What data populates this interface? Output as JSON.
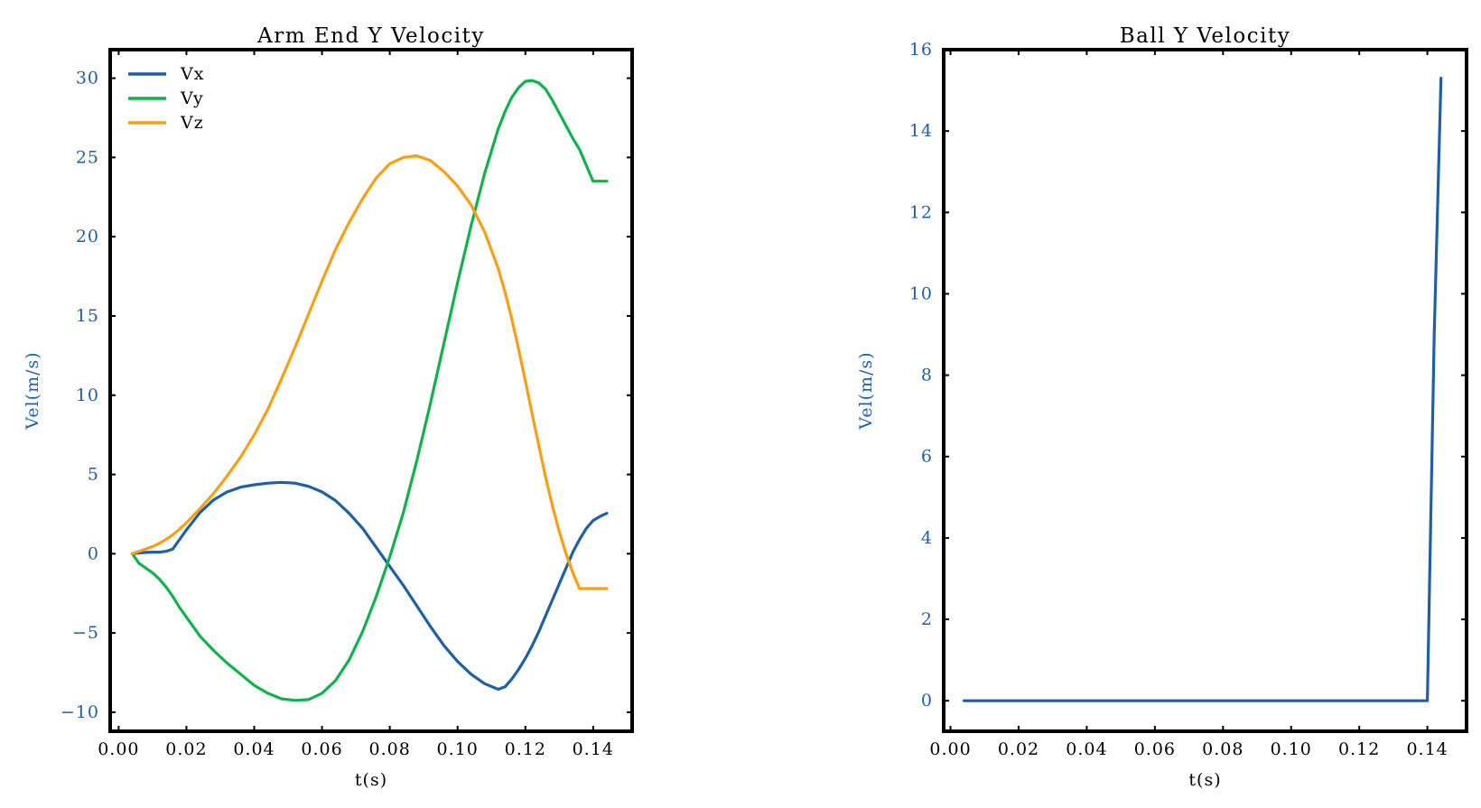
{
  "chart_data": [
    {
      "type": "line",
      "title": "Arm End Y Velocity",
      "xlabel": "t(s)",
      "ylabel": "Vel(m/s)",
      "xlim": [
        -0.0025,
        0.1515
      ],
      "ylim": [
        -11.2,
        31.8
      ],
      "xticks": [
        0.0,
        0.02,
        0.04,
        0.06,
        0.08,
        0.1,
        0.12,
        0.14
      ],
      "xtick_labels": [
        "0.00",
        "0.02",
        "0.04",
        "0.06",
        "0.08",
        "0.10",
        "0.12",
        "0.14"
      ],
      "yticks": [
        -10,
        -5,
        0,
        5,
        10,
        15,
        20,
        25,
        30
      ],
      "ytick_labels": [
        "−10",
        "−5",
        "0",
        "5",
        "10",
        "15",
        "20",
        "25",
        "30"
      ],
      "legend": {
        "location": "upper-left"
      },
      "x": [
        0.004,
        0.006,
        0.008,
        0.01,
        0.012,
        0.014,
        0.016,
        0.018,
        0.02,
        0.024,
        0.028,
        0.032,
        0.036,
        0.04,
        0.044,
        0.048,
        0.052,
        0.056,
        0.06,
        0.064,
        0.068,
        0.072,
        0.076,
        0.08,
        0.084,
        0.088,
        0.092,
        0.096,
        0.1,
        0.104,
        0.108,
        0.112,
        0.114,
        0.116,
        0.118,
        0.12,
        0.122,
        0.124,
        0.126,
        0.128,
        0.13,
        0.132,
        0.134,
        0.136,
        0.138,
        0.14,
        0.142,
        0.144
      ],
      "series": [
        {
          "name": "Vx",
          "color": "#1f5fa6",
          "values": [
            0.0,
            0.05,
            0.08,
            0.1,
            0.1,
            0.15,
            0.3,
            0.9,
            1.5,
            2.6,
            3.4,
            3.9,
            4.2,
            4.35,
            4.45,
            4.5,
            4.45,
            4.25,
            3.9,
            3.35,
            2.55,
            1.6,
            0.4,
            -0.8,
            -2.0,
            -3.3,
            -4.6,
            -5.8,
            -6.8,
            -7.6,
            -8.2,
            -8.55,
            -8.4,
            -7.9,
            -7.3,
            -6.6,
            -5.8,
            -4.9,
            -3.9,
            -2.9,
            -1.9,
            -0.9,
            0.1,
            0.9,
            1.6,
            2.1,
            2.35,
            2.55
          ]
        },
        {
          "name": "Vy",
          "color": "#11b24b",
          "values": [
            0.0,
            -0.6,
            -0.9,
            -1.2,
            -1.6,
            -2.1,
            -2.7,
            -3.4,
            -4.0,
            -5.2,
            -6.1,
            -6.9,
            -7.6,
            -8.3,
            -8.8,
            -9.15,
            -9.25,
            -9.2,
            -8.8,
            -8.0,
            -6.7,
            -4.9,
            -2.7,
            -0.2,
            2.6,
            5.9,
            9.5,
            13.3,
            17.1,
            20.7,
            24.0,
            26.8,
            27.9,
            28.8,
            29.4,
            29.8,
            29.85,
            29.7,
            29.3,
            28.6,
            27.8,
            27.0,
            26.2,
            25.5,
            24.5,
            23.5,
            23.5,
            23.5
          ]
        },
        {
          "name": "Vz",
          "color": "#f99f15",
          "values": [
            0.0,
            0.15,
            0.3,
            0.45,
            0.65,
            0.9,
            1.2,
            1.55,
            1.95,
            2.85,
            3.8,
            4.9,
            6.1,
            7.5,
            9.1,
            11.0,
            13.0,
            15.1,
            17.2,
            19.2,
            20.9,
            22.4,
            23.7,
            24.6,
            25.0,
            25.1,
            24.8,
            24.1,
            23.2,
            22.0,
            20.3,
            18.0,
            16.5,
            14.8,
            12.9,
            10.9,
            8.8,
            6.8,
            4.8,
            3.0,
            1.4,
            0.0,
            -1.2,
            -2.2,
            -2.2,
            -2.2,
            -2.2,
            -2.2
          ]
        }
      ]
    },
    {
      "type": "line",
      "title": "Ball Y Velocity",
      "xlabel": "t(s)",
      "ylabel": "Vel(m/s)",
      "xlim": [
        -0.002,
        0.1515
      ],
      "ylim": [
        -0.75,
        16.0
      ],
      "xticks": [
        0.0,
        0.02,
        0.04,
        0.06,
        0.08,
        0.1,
        0.12,
        0.14
      ],
      "xtick_labels": [
        "0.00",
        "0.02",
        "0.04",
        "0.06",
        "0.08",
        "0.10",
        "0.12",
        "0.14"
      ],
      "yticks": [
        0,
        2,
        4,
        6,
        8,
        10,
        12,
        14,
        16
      ],
      "ytick_labels": [
        "0",
        "2",
        "4",
        "6",
        "8",
        "10",
        "12",
        "14",
        "16"
      ],
      "x": [
        0.004,
        0.02,
        0.04,
        0.06,
        0.08,
        0.1,
        0.12,
        0.138,
        0.14,
        0.142,
        0.144
      ],
      "series": [
        {
          "color": "#1f5fa6",
          "values": [
            0.0,
            0.0,
            0.0,
            0.0,
            0.0,
            0.0,
            0.0,
            0.0,
            0.0,
            9.0,
            15.3
          ]
        }
      ]
    }
  ]
}
